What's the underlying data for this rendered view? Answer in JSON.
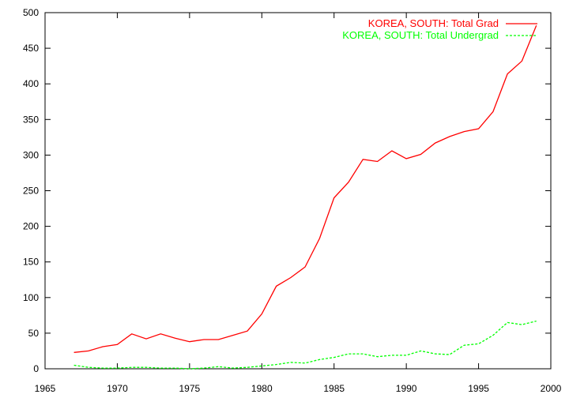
{
  "chart_data": {
    "type": "line",
    "title": "",
    "xlabel": "",
    "ylabel": "",
    "xlim": [
      1965,
      2000
    ],
    "ylim": [
      0,
      500
    ],
    "x_ticks": [
      1965,
      1970,
      1975,
      1980,
      1985,
      1990,
      1995,
      2000
    ],
    "y_ticks": [
      0,
      50,
      100,
      150,
      200,
      250,
      300,
      350,
      400,
      450,
      500
    ],
    "grid": false,
    "legend_position": "top-right",
    "series": [
      {
        "name": "KOREA, SOUTH: Total Grad",
        "color": "#ff0000",
        "dash": "solid",
        "x": [
          1967,
          1968,
          1969,
          1970,
          1971,
          1972,
          1973,
          1974,
          1975,
          1976,
          1977,
          1978,
          1979,
          1980,
          1981,
          1982,
          1983,
          1984,
          1985,
          1986,
          1987,
          1988,
          1989,
          1990,
          1991,
          1992,
          1993,
          1994,
          1995,
          1996,
          1997,
          1998,
          1999
        ],
        "values": [
          23,
          25,
          31,
          34,
          49,
          42,
          49,
          43,
          38,
          41,
          41,
          47,
          53,
          77,
          116,
          128,
          143,
          183,
          240,
          262,
          294,
          291,
          306,
          295,
          301,
          317,
          326,
          333,
          337,
          361,
          414,
          432,
          482
        ]
      },
      {
        "name": "KOREA, SOUTH: Total Undergrad",
        "color": "#00ff00",
        "dash": "dashed",
        "x": [
          1967,
          1968,
          1969,
          1970,
          1971,
          1972,
          1973,
          1974,
          1975,
          1976,
          1977,
          1978,
          1979,
          1980,
          1981,
          1982,
          1983,
          1984,
          1985,
          1986,
          1987,
          1988,
          1989,
          1990,
          1991,
          1992,
          1993,
          1994,
          1995,
          1996,
          1997,
          1998,
          1999
        ],
        "values": [
          5,
          2,
          1,
          1,
          2,
          2,
          1,
          1,
          0,
          1,
          3,
          1,
          2,
          4,
          6,
          9,
          8,
          13,
          16,
          21,
          21,
          17,
          19,
          19,
          25,
          21,
          20,
          33,
          35,
          47,
          65,
          62,
          67
        ]
      }
    ]
  }
}
